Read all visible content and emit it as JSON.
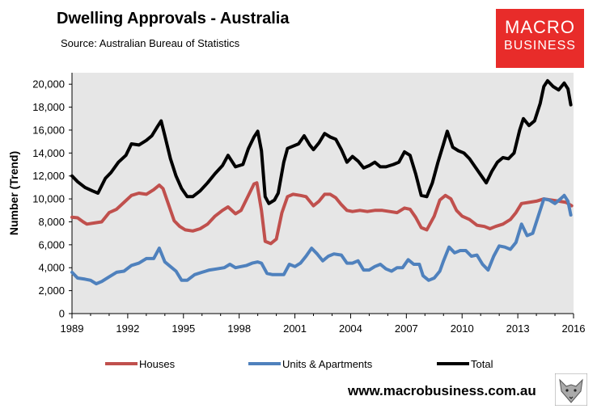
{
  "header": {
    "title": "Dwelling Approvals - Australia",
    "source": "Source:   Australian Bureau of Statistics"
  },
  "logo": {
    "line1": "MACRO",
    "line2": "BUSINESS"
  },
  "footer": {
    "url": "www.macrobusiness.com.au",
    "fox_icon": "fox-logo-icon"
  },
  "chart_data": {
    "type": "line",
    "ylabel": "Number (Trend)",
    "xlabel": "",
    "xlim": [
      1989,
      2016
    ],
    "ylim": [
      0,
      21000
    ],
    "x_ticks": [
      "1989",
      "1992",
      "1995",
      "1998",
      "2001",
      "2004",
      "2007",
      "2010",
      "2013",
      "2016"
    ],
    "y_ticks": [
      "0",
      "2,000",
      "4,000",
      "6,000",
      "8,000",
      "10,000",
      "12,000",
      "14,000",
      "16,000",
      "18,000",
      "20,000"
    ],
    "plot_background": "#e6e6e6",
    "grid": false,
    "legend_position": "bottom",
    "series": [
      {
        "name": "Houses",
        "color": "#c0504d",
        "points": [
          [
            1989,
            8400
          ],
          [
            1989.3,
            8350
          ],
          [
            1989.6,
            8000
          ],
          [
            1989.8,
            7800
          ],
          [
            1990.2,
            7900
          ],
          [
            1990.6,
            8000
          ],
          [
            1991,
            8800
          ],
          [
            1991.4,
            9100
          ],
          [
            1991.8,
            9700
          ],
          [
            1992.2,
            10300
          ],
          [
            1992.6,
            10500
          ],
          [
            1993,
            10400
          ],
          [
            1993.4,
            10800
          ],
          [
            1993.7,
            11200
          ],
          [
            1993.9,
            10900
          ],
          [
            1994.2,
            9500
          ],
          [
            1994.5,
            8100
          ],
          [
            1994.8,
            7600
          ],
          [
            1995.1,
            7300
          ],
          [
            1995.5,
            7200
          ],
          [
            1995.9,
            7400
          ],
          [
            1996.3,
            7800
          ],
          [
            1996.7,
            8500
          ],
          [
            1997.1,
            9000
          ],
          [
            1997.4,
            9300
          ],
          [
            1997.8,
            8700
          ],
          [
            1998.1,
            9000
          ],
          [
            1998.5,
            10300
          ],
          [
            1998.8,
            11300
          ],
          [
            1998.95,
            11400
          ],
          [
            1999.2,
            9000
          ],
          [
            1999.4,
            6300
          ],
          [
            1999.7,
            6100
          ],
          [
            2000,
            6500
          ],
          [
            2000.3,
            8800
          ],
          [
            2000.6,
            10200
          ],
          [
            2000.9,
            10400
          ],
          [
            2001.3,
            10300
          ],
          [
            2001.6,
            10200
          ],
          [
            2002,
            9400
          ],
          [
            2002.3,
            9800
          ],
          [
            2002.6,
            10400
          ],
          [
            2002.9,
            10400
          ],
          [
            2003.2,
            10100
          ],
          [
            2003.5,
            9500
          ],
          [
            2003.8,
            9000
          ],
          [
            2004.1,
            8900
          ],
          [
            2004.5,
            9000
          ],
          [
            2004.9,
            8900
          ],
          [
            2005.3,
            9000
          ],
          [
            2005.7,
            9000
          ],
          [
            2006.1,
            8900
          ],
          [
            2006.5,
            8800
          ],
          [
            2006.9,
            9200
          ],
          [
            2007.2,
            9100
          ],
          [
            2007.5,
            8400
          ],
          [
            2007.8,
            7500
          ],
          [
            2008.1,
            7300
          ],
          [
            2008.5,
            8500
          ],
          [
            2008.8,
            9900
          ],
          [
            2009.1,
            10300
          ],
          [
            2009.4,
            10000
          ],
          [
            2009.7,
            9000
          ],
          [
            2010,
            8500
          ],
          [
            2010.4,
            8200
          ],
          [
            2010.8,
            7700
          ],
          [
            2011.2,
            7600
          ],
          [
            2011.5,
            7400
          ],
          [
            2011.8,
            7600
          ],
          [
            2012.2,
            7800
          ],
          [
            2012.6,
            8200
          ],
          [
            2012.9,
            8800
          ],
          [
            2013.2,
            9600
          ],
          [
            2013.6,
            9700
          ],
          [
            2014,
            9800
          ],
          [
            2014.4,
            10000
          ],
          [
            2014.8,
            9900
          ],
          [
            2015.2,
            9800
          ],
          [
            2015.6,
            9700
          ],
          [
            2015.8,
            9500
          ],
          [
            2015.9,
            9400
          ]
        ]
      },
      {
        "name": "Units & Apartments",
        "color": "#4f81bd",
        "points": [
          [
            1989,
            3600
          ],
          [
            1989.3,
            3100
          ],
          [
            1989.7,
            3000
          ],
          [
            1990,
            2900
          ],
          [
            1990.3,
            2600
          ],
          [
            1990.6,
            2800
          ],
          [
            1991,
            3200
          ],
          [
            1991.4,
            3600
          ],
          [
            1991.8,
            3700
          ],
          [
            1992.2,
            4200
          ],
          [
            1992.6,
            4400
          ],
          [
            1993,
            4800
          ],
          [
            1993.4,
            4800
          ],
          [
            1993.7,
            5700
          ],
          [
            1994,
            4500
          ],
          [
            1994.3,
            4100
          ],
          [
            1994.6,
            3700
          ],
          [
            1994.9,
            2900
          ],
          [
            1995.2,
            2900
          ],
          [
            1995.6,
            3400
          ],
          [
            1996,
            3600
          ],
          [
            1996.4,
            3800
          ],
          [
            1996.8,
            3900
          ],
          [
            1997.2,
            4000
          ],
          [
            1997.5,
            4300
          ],
          [
            1997.8,
            4000
          ],
          [
            1998.1,
            4100
          ],
          [
            1998.4,
            4200
          ],
          [
            1998.7,
            4400
          ],
          [
            1999,
            4500
          ],
          [
            1999.2,
            4400
          ],
          [
            1999.5,
            3500
          ],
          [
            1999.8,
            3400
          ],
          [
            2000.1,
            3400
          ],
          [
            2000.4,
            3400
          ],
          [
            2000.7,
            4300
          ],
          [
            2001,
            4100
          ],
          [
            2001.3,
            4400
          ],
          [
            2001.6,
            5000
          ],
          [
            2001.9,
            5700
          ],
          [
            2002.2,
            5200
          ],
          [
            2002.5,
            4600
          ],
          [
            2002.8,
            5000
          ],
          [
            2003.1,
            5200
          ],
          [
            2003.5,
            5100
          ],
          [
            2003.8,
            4400
          ],
          [
            2004.1,
            4400
          ],
          [
            2004.4,
            4600
          ],
          [
            2004.7,
            3800
          ],
          [
            2005,
            3800
          ],
          [
            2005.3,
            4100
          ],
          [
            2005.6,
            4300
          ],
          [
            2005.9,
            3900
          ],
          [
            2006.2,
            3700
          ],
          [
            2006.5,
            4000
          ],
          [
            2006.8,
            4000
          ],
          [
            2007.1,
            4700
          ],
          [
            2007.4,
            4300
          ],
          [
            2007.7,
            4300
          ],
          [
            2007.9,
            3300
          ],
          [
            2008.2,
            2900
          ],
          [
            2008.5,
            3100
          ],
          [
            2008.8,
            3700
          ],
          [
            2009,
            4600
          ],
          [
            2009.3,
            5800
          ],
          [
            2009.6,
            5300
          ],
          [
            2009.9,
            5500
          ],
          [
            2010.2,
            5500
          ],
          [
            2010.5,
            5000
          ],
          [
            2010.8,
            5100
          ],
          [
            2011.1,
            4300
          ],
          [
            2011.4,
            3800
          ],
          [
            2011.7,
            5000
          ],
          [
            2012,
            5900
          ],
          [
            2012.3,
            5800
          ],
          [
            2012.6,
            5600
          ],
          [
            2012.9,
            6200
          ],
          [
            2013.2,
            7800
          ],
          [
            2013.5,
            6800
          ],
          [
            2013.8,
            7000
          ],
          [
            2014.1,
            8500
          ],
          [
            2014.4,
            10000
          ],
          [
            2014.7,
            9900
          ],
          [
            2015,
            9600
          ],
          [
            2015.3,
            10000
          ],
          [
            2015.5,
            10300
          ],
          [
            2015.7,
            9800
          ],
          [
            2015.85,
            8600
          ]
        ]
      },
      {
        "name": "Total",
        "color": "#000000",
        "points": [
          [
            1989,
            12000
          ],
          [
            1989.3,
            11500
          ],
          [
            1989.7,
            11000
          ],
          [
            1990.1,
            10700
          ],
          [
            1990.4,
            10500
          ],
          [
            1990.8,
            11800
          ],
          [
            1991.1,
            12300
          ],
          [
            1991.5,
            13200
          ],
          [
            1991.9,
            13800
          ],
          [
            1992.2,
            14800
          ],
          [
            1992.6,
            14700
          ],
          [
            1993,
            15100
          ],
          [
            1993.3,
            15500
          ],
          [
            1993.6,
            16300
          ],
          [
            1993.8,
            16800
          ],
          [
            1994,
            15500
          ],
          [
            1994.3,
            13500
          ],
          [
            1994.6,
            12000
          ],
          [
            1994.9,
            10900
          ],
          [
            1995.2,
            10200
          ],
          [
            1995.5,
            10200
          ],
          [
            1995.9,
            10700
          ],
          [
            1996.3,
            11400
          ],
          [
            1996.7,
            12200
          ],
          [
            1997.1,
            12900
          ],
          [
            1997.4,
            13800
          ],
          [
            1997.8,
            12800
          ],
          [
            1998.2,
            13000
          ],
          [
            1998.5,
            14400
          ],
          [
            1998.8,
            15400
          ],
          [
            1999,
            15900
          ],
          [
            1999.2,
            14200
          ],
          [
            1999.4,
            10200
          ],
          [
            1999.6,
            9600
          ],
          [
            1999.9,
            9900
          ],
          [
            2000.1,
            10500
          ],
          [
            2000.4,
            13200
          ],
          [
            2000.6,
            14400
          ],
          [
            2000.9,
            14600
          ],
          [
            2001.2,
            14800
          ],
          [
            2001.5,
            15500
          ],
          [
            2001.8,
            14700
          ],
          [
            2002,
            14300
          ],
          [
            2002.3,
            14900
          ],
          [
            2002.6,
            15700
          ],
          [
            2002.9,
            15400
          ],
          [
            2003.2,
            15200
          ],
          [
            2003.5,
            14300
          ],
          [
            2003.8,
            13200
          ],
          [
            2004.1,
            13700
          ],
          [
            2004.4,
            13300
          ],
          [
            2004.7,
            12700
          ],
          [
            2005,
            12900
          ],
          [
            2005.3,
            13200
          ],
          [
            2005.6,
            12800
          ],
          [
            2005.9,
            12800
          ],
          [
            2006.3,
            13000
          ],
          [
            2006.6,
            13200
          ],
          [
            2006.9,
            14100
          ],
          [
            2007.2,
            13800
          ],
          [
            2007.5,
            12200
          ],
          [
            2007.8,
            10300
          ],
          [
            2008.1,
            10200
          ],
          [
            2008.4,
            11400
          ],
          [
            2008.7,
            13200
          ],
          [
            2009,
            14800
          ],
          [
            2009.2,
            15900
          ],
          [
            2009.5,
            14500
          ],
          [
            2009.8,
            14200
          ],
          [
            2010.1,
            14000
          ],
          [
            2010.4,
            13500
          ],
          [
            2010.7,
            12800
          ],
          [
            2011,
            12100
          ],
          [
            2011.3,
            11400
          ],
          [
            2011.6,
            12400
          ],
          [
            2011.9,
            13200
          ],
          [
            2012.2,
            13600
          ],
          [
            2012.5,
            13500
          ],
          [
            2012.8,
            14000
          ],
          [
            2013.1,
            16000
          ],
          [
            2013.3,
            17000
          ],
          [
            2013.6,
            16400
          ],
          [
            2013.9,
            16800
          ],
          [
            2014.2,
            18300
          ],
          [
            2014.4,
            19800
          ],
          [
            2014.6,
            20300
          ],
          [
            2014.9,
            19800
          ],
          [
            2015.2,
            19500
          ],
          [
            2015.5,
            20100
          ],
          [
            2015.7,
            19600
          ],
          [
            2015.85,
            18200
          ]
        ]
      }
    ]
  }
}
